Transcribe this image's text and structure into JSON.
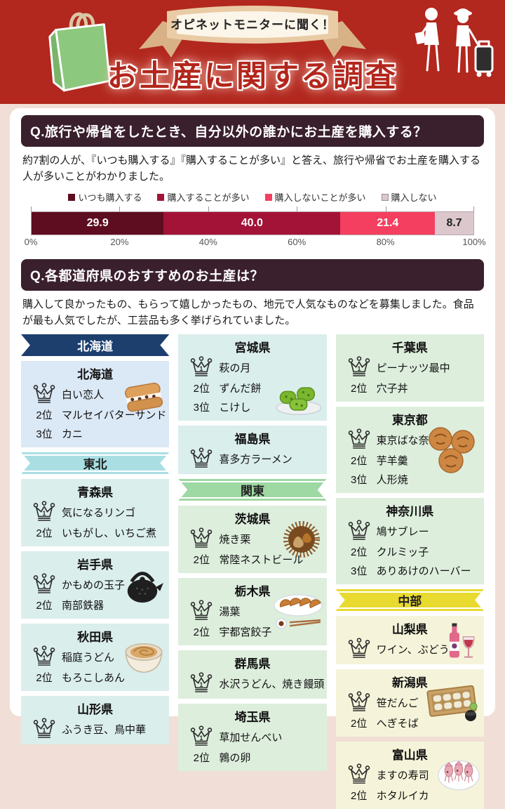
{
  "header": {
    "badge": "オピネットモニターに聞く！",
    "title": "お土産に関する調査"
  },
  "q1": {
    "title": "Q.旅行や帰省をしたとき、自分以外の誰かにお土産を購入する？",
    "description": "約7割の人が、『いつも購入する』『購入することが多い』と答え、旅行や帰省でお土産を購入する人が多いことがわかりました。"
  },
  "chart_data": {
    "type": "bar",
    "stacked": true,
    "orientation": "horizontal",
    "series": [
      {
        "name": "いつも購入する",
        "value": 29.9,
        "color": "#5e0d20"
      },
      {
        "name": "購入することが多い",
        "value": 40.0,
        "color": "#a31337"
      },
      {
        "name": "購入しないことが多い",
        "value": 21.4,
        "color": "#f43f60"
      },
      {
        "name": "購入しない",
        "value": 8.7,
        "color": "#dcc8cc",
        "text_color": "#222222"
      }
    ],
    "value_labels": [
      "29.9",
      "40.0",
      "21.4",
      "8.7"
    ],
    "x_ticks": [
      "0%",
      "20%",
      "40%",
      "60%",
      "80%",
      "100%"
    ],
    "xlim": [
      0,
      100
    ],
    "legend_position": "top"
  },
  "q2": {
    "title": "Q.各都道府県のおすすめのお土産は？",
    "description": "購入して良かったもの、もらって嬉しかったもの、地元で人気なものなどを募集しました。食品が最も人気でしたが、工芸品も多く挙げられていました。"
  },
  "palette": {
    "hokkaido_banner": "#1d3f6e",
    "hokkaido_card": "#dbe8f5",
    "tohoku_banner": "#a9dfe3",
    "tohoku_card": "#daeeec",
    "kanto_banner": "#9ed8a3",
    "kanto_card": "#ddeedd",
    "chubu_banner": "#e8da2e",
    "chubu_card": "#f5f4da"
  },
  "columns": [
    [
      {
        "type": "banner",
        "label": "北海道",
        "region": "hokkaido",
        "text_color": "#ffffff"
      },
      {
        "type": "card",
        "region": "hokkaido",
        "prefecture": "北海道",
        "icon": "butter-sandwich",
        "ranks": [
          {
            "rank": "1",
            "item": "白い恋人"
          },
          {
            "rank": "2位",
            "item": "マルセイバターサンド"
          },
          {
            "rank": "3位",
            "item": "カニ"
          }
        ]
      },
      {
        "type": "banner",
        "label": "東北",
        "region": "tohoku",
        "text_color": "#222222"
      },
      {
        "type": "card",
        "region": "tohoku",
        "prefecture": "青森県",
        "ranks": [
          {
            "rank": "1",
            "item": "気になるリンゴ"
          },
          {
            "rank": "2位",
            "item": "いもがし、いちご煮"
          }
        ]
      },
      {
        "type": "card",
        "region": "tohoku",
        "prefecture": "岩手県",
        "icon": "iron-kettle",
        "ranks": [
          {
            "rank": "1",
            "item": "かもめの玉子"
          },
          {
            "rank": "2位",
            "item": "南部鉄器"
          }
        ]
      },
      {
        "type": "card",
        "region": "tohoku",
        "prefecture": "秋田県",
        "icon": "udon-bowl",
        "ranks": [
          {
            "rank": "1",
            "item": "稲庭うどん"
          },
          {
            "rank": "2位",
            "item": "もろこしあん"
          }
        ]
      },
      {
        "type": "card",
        "region": "tohoku",
        "prefecture": "山形県",
        "ranks": [
          {
            "rank": "1",
            "item": "ふうき豆、鳥中華"
          }
        ]
      }
    ],
    [
      {
        "type": "card",
        "region": "tohoku",
        "prefecture": "宮城県",
        "icon": "zunda-mochi",
        "ranks": [
          {
            "rank": "1",
            "item": "萩の月"
          },
          {
            "rank": "2位",
            "item": "ずんだ餅"
          },
          {
            "rank": "3位",
            "item": "こけし"
          }
        ]
      },
      {
        "type": "card",
        "region": "tohoku",
        "prefecture": "福島県",
        "ranks": [
          {
            "rank": "1",
            "item": "喜多方ラーメン"
          }
        ]
      },
      {
        "type": "banner",
        "label": "関東",
        "region": "kanto",
        "text_color": "#222222"
      },
      {
        "type": "card",
        "region": "kanto",
        "prefecture": "茨城県",
        "icon": "chestnut",
        "ranks": [
          {
            "rank": "1",
            "item": "焼き栗"
          },
          {
            "rank": "2位",
            "item": "常陸ネストビール"
          }
        ]
      },
      {
        "type": "card",
        "region": "kanto",
        "prefecture": "栃木県",
        "icon": "gyoza",
        "ranks": [
          {
            "rank": "1",
            "item": "湯葉"
          },
          {
            "rank": "2位",
            "item": "宇都宮餃子"
          }
        ]
      },
      {
        "type": "card",
        "region": "kanto",
        "prefecture": "群馬県",
        "ranks": [
          {
            "rank": "1",
            "item": "水沢うどん、焼き饅頭"
          }
        ]
      },
      {
        "type": "card",
        "region": "kanto",
        "prefecture": "埼玉県",
        "ranks": [
          {
            "rank": "1",
            "item": "草加せんべい"
          },
          {
            "rank": "2位",
            "item": "鶉の卵"
          }
        ]
      }
    ],
    [
      {
        "type": "card",
        "region": "kanto",
        "prefecture": "千葉県",
        "ranks": [
          {
            "rank": "1",
            "item": "ピーナッツ最中"
          },
          {
            "rank": "2位",
            "item": "穴子丼"
          }
        ]
      },
      {
        "type": "card",
        "region": "kanto",
        "prefecture": "東京都",
        "icon": "ningyoyaki",
        "ranks": [
          {
            "rank": "1",
            "item": "東京ばな奈"
          },
          {
            "rank": "2位",
            "item": "芋羊羹"
          },
          {
            "rank": "3位",
            "item": "人形焼"
          }
        ]
      },
      {
        "type": "card",
        "region": "kanto",
        "prefecture": "神奈川県",
        "ranks": [
          {
            "rank": "1",
            "item": "鳩サブレー"
          },
          {
            "rank": "2位",
            "item": "クルミッ子"
          },
          {
            "rank": "3位",
            "item": "ありあけのハーバー"
          }
        ]
      },
      {
        "type": "banner",
        "label": "中部",
        "region": "chubu",
        "text_color": "#222222"
      },
      {
        "type": "card",
        "region": "chubu",
        "prefecture": "山梨県",
        "icon": "wine",
        "ranks": [
          {
            "rank": "1",
            "item": "ワイン、ぶどう"
          }
        ]
      },
      {
        "type": "card",
        "region": "chubu",
        "prefecture": "新潟県",
        "icon": "hegisoba",
        "ranks": [
          {
            "rank": "1",
            "item": "笹だんご"
          },
          {
            "rank": "2位",
            "item": "へぎそば"
          }
        ]
      },
      {
        "type": "card",
        "region": "chubu",
        "prefecture": "富山県",
        "icon": "firefly-squid",
        "ranks": [
          {
            "rank": "1",
            "item": "ますの寿司"
          },
          {
            "rank": "2位",
            "item": "ホタルイカ"
          }
        ]
      }
    ]
  ]
}
